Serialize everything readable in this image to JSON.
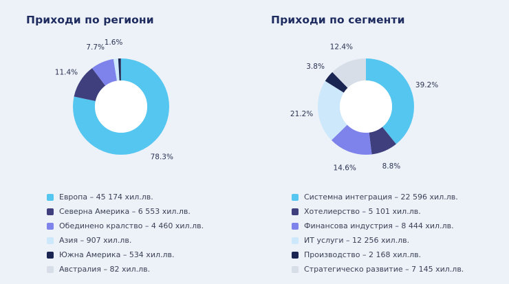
{
  "page": {
    "background": "#edf1f8",
    "title_color": "#1d2b5f"
  },
  "chart_data": [
    {
      "type": "pie",
      "subtype": "donut",
      "title": "Приходи по региони",
      "unit": "хил.лв.",
      "start_angle": "top",
      "direction": "clockwise",
      "legend_position": "bottom-left",
      "segments": [
        {
          "name": "Европа",
          "value": 45174,
          "pct_label": "78.3%",
          "legend": "Европа – 45 174 хил.лв.",
          "color": "#55c6f0"
        },
        {
          "name": "Северна Америка",
          "value": 6553,
          "pct_label": "11.4%",
          "legend": "Северна Америка – 6 553 хил.лв.",
          "color": "#3f3f7d"
        },
        {
          "name": "Обединено кралство",
          "value": 4460,
          "pct_label": "7.7%",
          "legend": "Обединено кралство – 4 460 хил.лв.",
          "color": "#7e83eb"
        },
        {
          "name": "Азия",
          "value": 907,
          "pct_label": "1.6%",
          "legend": "Азия – 907 хил.лв.",
          "color": "#cde8fa"
        },
        {
          "name": "Южна Америка",
          "value": 534,
          "pct_label": "",
          "legend": "Южна Америка – 534 хил.лв.",
          "color": "#1b2551"
        },
        {
          "name": "Австралия",
          "value": 82,
          "pct_label": "",
          "legend": "Австралия – 82 хил.лв.",
          "color": "#d8dee8"
        }
      ]
    },
    {
      "type": "pie",
      "subtype": "donut",
      "title": "Приходи по сегменти",
      "unit": "хил.лв.",
      "start_angle": "top",
      "direction": "clockwise",
      "legend_position": "bottom-left",
      "segments": [
        {
          "name": "Системна интеграция",
          "value": 22596,
          "pct_label": "39.2%",
          "legend": "Системна интеграция – 22 596 хил.лв.",
          "color": "#55c6f0"
        },
        {
          "name": "Хотелиерство",
          "value": 5101,
          "pct_label": "8.8%",
          "legend": "Хотелиерство – 5 101 хил.лв.",
          "color": "#3f3f7d"
        },
        {
          "name": "Финансова индустрия",
          "value": 8444,
          "pct_label": "14.6%",
          "legend": "Финансова индустрия – 8 444 хил.лв.",
          "color": "#7e83eb"
        },
        {
          "name": "ИТ услуги",
          "value": 12256,
          "pct_label": "21.2%",
          "legend": "ИТ услуги – 12 256 хил.лв.",
          "color": "#cde8fa"
        },
        {
          "name": "Производство",
          "value": 2168,
          "pct_label": "3.8%",
          "legend": "Производство – 2 168 хил.лв.",
          "color": "#1b2551"
        },
        {
          "name": "Стратегическо развитие",
          "value": 7145,
          "pct_label": "12.4%",
          "legend": "Стратегическо развитие – 7 145 хил.лв.",
          "color": "#d8dee8"
        }
      ]
    }
  ]
}
